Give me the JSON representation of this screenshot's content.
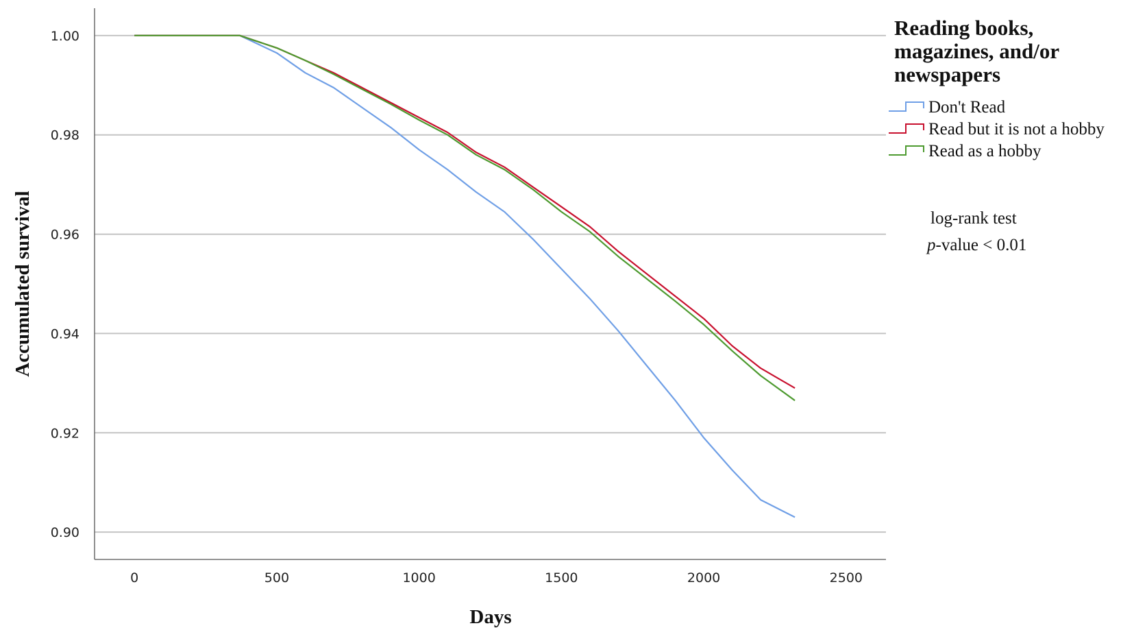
{
  "chart_data": {
    "type": "line",
    "step": true,
    "xlabel": "Days",
    "ylabel": "Accumulated survival",
    "xlim": [
      -140,
      2640
    ],
    "ylim": [
      0.8945,
      1.0055
    ],
    "xticks": [
      "0",
      "500",
      "1000",
      "1500",
      "2000",
      "2500"
    ],
    "yticks": [
      "0.90",
      "0.92",
      "0.94",
      "0.96",
      "0.98",
      "1.00"
    ],
    "grid": "horizontal",
    "legend": {
      "title": "Reading books, magazines, and/or newspapers",
      "title_lines": [
        "Reading books,",
        "magazines, and/or",
        "newspapers"
      ],
      "placement": "right"
    },
    "annotation": {
      "line1": "log-rank test",
      "line2_italic": "p",
      "line2_rest": "-value < 0.01"
    },
    "series": [
      {
        "name": "Don't Read",
        "color": "#6f9fe6",
        "x": [
          0,
          370,
          500,
          600,
          700,
          800,
          900,
          1000,
          1100,
          1200,
          1300,
          1400,
          1500,
          1600,
          1700,
          1800,
          1900,
          2000,
          2100,
          2200,
          2320
        ],
        "y": [
          1.0,
          1.0,
          0.9965,
          0.9925,
          0.9895,
          0.9855,
          0.9815,
          0.977,
          0.973,
          0.9685,
          0.9645,
          0.959,
          0.953,
          0.947,
          0.9405,
          0.9335,
          0.9265,
          0.919,
          0.9125,
          0.9065,
          0.903
        ]
      },
      {
        "name": "Read but it is not a hobby",
        "color": "#c8102e",
        "x": [
          0,
          370,
          500,
          600,
          700,
          800,
          900,
          1000,
          1100,
          1200,
          1300,
          1400,
          1500,
          1600,
          1700,
          1800,
          1900,
          2000,
          2100,
          2200,
          2320
        ],
        "y": [
          1.0,
          1.0,
          0.9975,
          0.995,
          0.9925,
          0.9895,
          0.9865,
          0.9835,
          0.9805,
          0.9765,
          0.9735,
          0.9695,
          0.9655,
          0.9615,
          0.9565,
          0.952,
          0.9475,
          0.943,
          0.9375,
          0.933,
          0.929
        ]
      },
      {
        "name": "Read as a hobby",
        "color": "#4d9a2f",
        "x": [
          0,
          370,
          500,
          600,
          700,
          800,
          900,
          1000,
          1100,
          1200,
          1300,
          1400,
          1500,
          1600,
          1700,
          1800,
          1900,
          2000,
          2100,
          2200,
          2320
        ],
        "y": [
          1.0,
          1.0,
          0.9975,
          0.995,
          0.9922,
          0.9892,
          0.9862,
          0.983,
          0.98,
          0.976,
          0.973,
          0.969,
          0.9645,
          0.9605,
          0.9555,
          0.951,
          0.9465,
          0.9418,
          0.9365,
          0.9315,
          0.9265
        ]
      }
    ]
  }
}
